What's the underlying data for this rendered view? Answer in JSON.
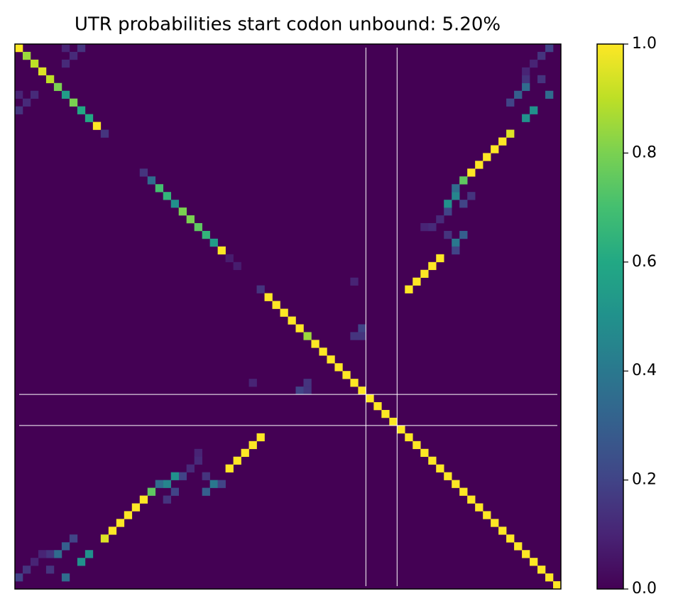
{
  "chart_data": {
    "type": "heatmap",
    "title": "UTR probabilities start codon unbound: 5.20%",
    "size": 70,
    "symmetric": true,
    "x": [
      0,
      1,
      2,
      3,
      4,
      5,
      6,
      7,
      8,
      9,
      10,
      11,
      16,
      17,
      18,
      19,
      20,
      21,
      22,
      23,
      24,
      25,
      26,
      27,
      28,
      31,
      32,
      33,
      34,
      35,
      36,
      37,
      38,
      39,
      40,
      41,
      42,
      43,
      44,
      45,
      46,
      47,
      48,
      49,
      50,
      51,
      52,
      53,
      54,
      55,
      56,
      57,
      58,
      59,
      60,
      61,
      62,
      63,
      64,
      65,
      66,
      67,
      68,
      69,
      6,
      8,
      7,
      6,
      50,
      51,
      52,
      53,
      54,
      52,
      53,
      54,
      55,
      56,
      57,
      56,
      55,
      55,
      56,
      56,
      57,
      58,
      57,
      58,
      59,
      60,
      61,
      62,
      63,
      65,
      66,
      63,
      64,
      65,
      68,
      65,
      67,
      65,
      66,
      67,
      68,
      43,
      43,
      44,
      44
    ],
    "y": [
      0,
      1,
      2,
      3,
      4,
      5,
      6,
      7,
      8,
      9,
      10,
      11,
      16,
      17,
      18,
      19,
      20,
      21,
      22,
      23,
      24,
      25,
      26,
      27,
      28,
      31,
      32,
      33,
      34,
      35,
      36,
      37,
      38,
      39,
      40,
      41,
      42,
      43,
      44,
      45,
      46,
      47,
      48,
      49,
      50,
      51,
      52,
      53,
      54,
      55,
      56,
      57,
      58,
      59,
      60,
      61,
      62,
      63,
      64,
      65,
      66,
      67,
      68,
      69,
      0,
      0,
      1,
      2,
      31,
      30,
      29,
      28,
      27,
      23,
      23,
      22,
      24,
      25,
      24,
      26,
      21,
      20,
      19,
      18,
      20,
      19,
      17,
      16,
      15,
      14,
      13,
      12,
      11,
      9,
      8,
      7,
      6,
      5,
      6,
      4,
      4,
      3,
      2,
      1,
      0,
      30,
      37,
      36,
      37
    ],
    "values": [
      1,
      0.85,
      0.9,
      0.95,
      0.9,
      0.8,
      0.55,
      0.8,
      0.6,
      0.6,
      1,
      0.15,
      0.15,
      0.35,
      0.7,
      0.65,
      0.5,
      0.8,
      0.8,
      0.75,
      0.65,
      0.55,
      1,
      0.08,
      0.08,
      0.15,
      1,
      1,
      1,
      1,
      1,
      0.85,
      1,
      1,
      1,
      1,
      1,
      1,
      1,
      1,
      1,
      1,
      1,
      1,
      1,
      1,
      1,
      1,
      1,
      1,
      1,
      1,
      1,
      1,
      1,
      1,
      1,
      1,
      1,
      1,
      1,
      1,
      1,
      1,
      0.1,
      0.15,
      0.12,
      0.12,
      1,
      1,
      1,
      1,
      1,
      0.1,
      0.12,
      0.12,
      0.15,
      0.4,
      0.3,
      0.2,
      0.2,
      0.5,
      0.45,
      0.35,
      0.2,
      0.15,
      0.75,
      1,
      1,
      1,
      1,
      1,
      0.95,
      0.5,
      0.5,
      0.2,
      0.3,
      0.35,
      0.35,
      0.15,
      0.15,
      0.1,
      0.1,
      0.15,
      0.2,
      0.1,
      0.15,
      0.2,
      0.15
    ],
    "guide_lines": [
      45,
      49
    ],
    "colormap": "viridis",
    "zlim": [
      0,
      1
    ],
    "zticks": [
      {
        "value": 0,
        "label": "0.0"
      },
      {
        "value": 0.2,
        "label": "0.2"
      },
      {
        "value": 0.4,
        "label": "0.4"
      },
      {
        "value": 0.6,
        "label": "0.6"
      },
      {
        "value": 0.8,
        "label": "0.8"
      },
      {
        "value": 1,
        "label": "1.0"
      }
    ]
  }
}
